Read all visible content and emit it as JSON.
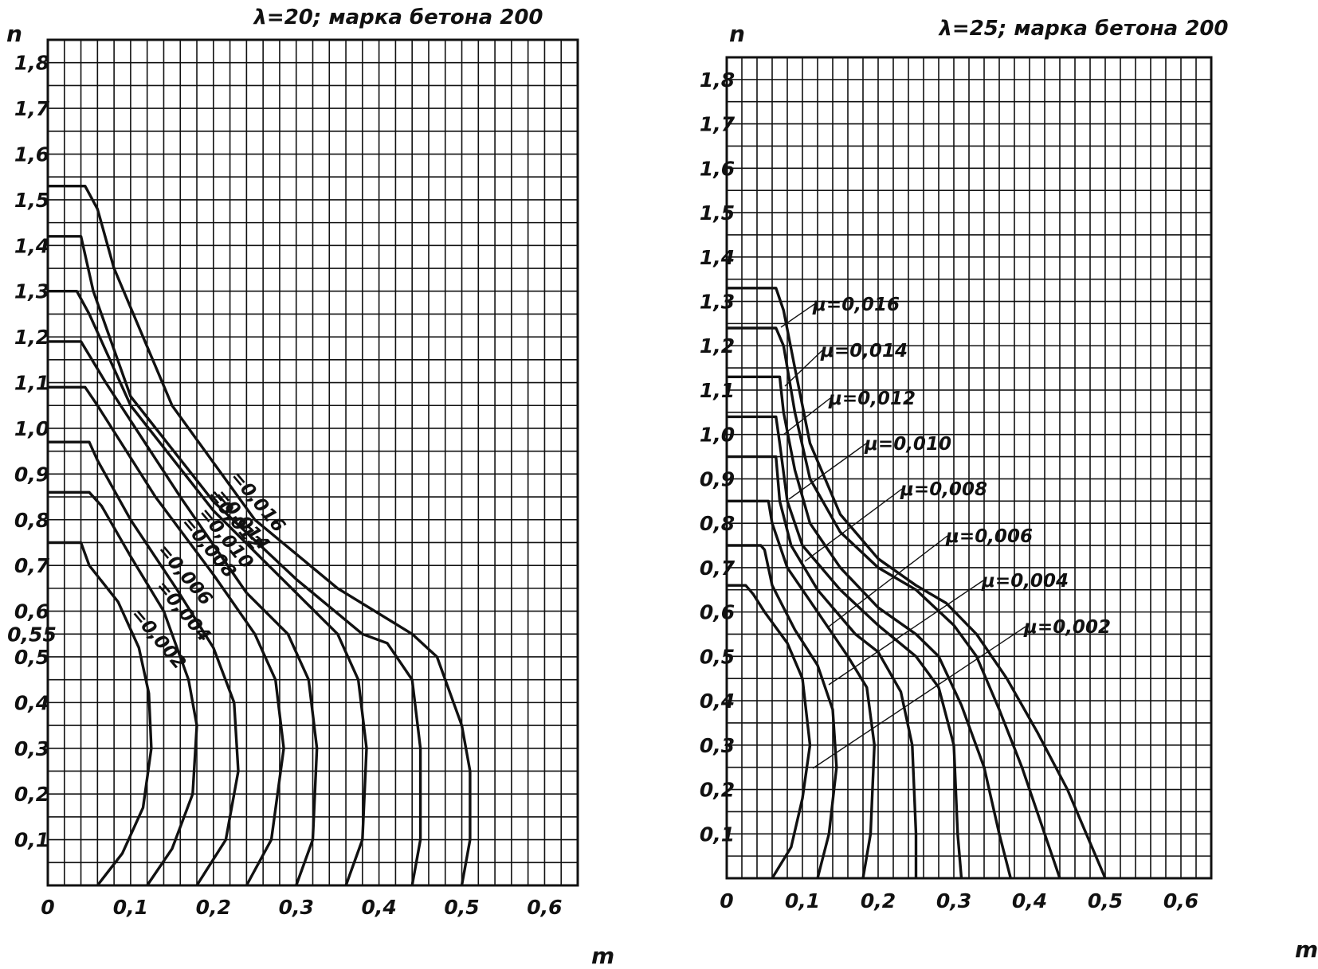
{
  "chart_data": [
    {
      "type": "line",
      "title": "λ=20; марка бетона 200",
      "xlabel": "m",
      "ylabel": "n",
      "xlim": [
        0,
        0.64
      ],
      "ylim": [
        0,
        1.85
      ],
      "xticks": [
        "0",
        "0,1",
        "0,2",
        "0,3",
        "0,4",
        "0,5",
        "0,6"
      ],
      "yticks": [
        "0,1",
        "0,2",
        "0,3",
        "0,4",
        "0,5",
        "0,55",
        "0,6",
        "0,7",
        "0,8",
        "0,9",
        "1,0",
        "1,1",
        "1,2",
        "1,3",
        "1,4",
        "1,5",
        "1,6",
        "1,7",
        "1,8"
      ],
      "grid": true,
      "series": [
        {
          "name": "μ=0,002",
          "label": "=0,002",
          "points": [
            [
              0.06,
              0.0
            ],
            [
              0.09,
              0.07
            ],
            [
              0.115,
              0.17
            ],
            [
              0.125,
              0.3
            ],
            [
              0.122,
              0.42
            ],
            [
              0.11,
              0.52
            ],
            [
              0.085,
              0.62
            ],
            [
              0.05,
              0.7
            ],
            [
              0.04,
              0.75
            ],
            [
              0.0,
              0.75
            ]
          ]
        },
        {
          "name": "μ=0,004",
          "label": "=0,004",
          "points": [
            [
              0.12,
              0.0
            ],
            [
              0.15,
              0.08
            ],
            [
              0.175,
              0.2
            ],
            [
              0.18,
              0.35
            ],
            [
              0.17,
              0.45
            ],
            [
              0.14,
              0.6
            ],
            [
              0.1,
              0.72
            ],
            [
              0.065,
              0.83
            ],
            [
              0.05,
              0.86
            ],
            [
              0.0,
              0.86
            ]
          ]
        },
        {
          "name": "μ=0,006",
          "label": "=0,006",
          "points": [
            [
              0.18,
              0.0
            ],
            [
              0.215,
              0.1
            ],
            [
              0.23,
              0.25
            ],
            [
              0.225,
              0.4
            ],
            [
              0.2,
              0.52
            ],
            [
              0.155,
              0.65
            ],
            [
              0.1,
              0.8
            ],
            [
              0.06,
              0.93
            ],
            [
              0.05,
              0.97
            ],
            [
              0.0,
              0.97
            ]
          ]
        },
        {
          "name": "μ=0,008",
          "label": "=0,008",
          "points": [
            [
              0.24,
              0.0
            ],
            [
              0.27,
              0.1
            ],
            [
              0.285,
              0.3
            ],
            [
              0.275,
              0.45
            ],
            [
              0.25,
              0.55
            ],
            [
              0.2,
              0.68
            ],
            [
              0.13,
              0.85
            ],
            [
              0.06,
              1.05
            ],
            [
              0.045,
              1.09
            ],
            [
              0.0,
              1.09
            ]
          ]
        },
        {
          "name": "μ=0,010",
          "label": "=0,010",
          "points": [
            [
              0.3,
              0.0
            ],
            [
              0.32,
              0.1
            ],
            [
              0.325,
              0.3
            ],
            [
              0.315,
              0.45
            ],
            [
              0.29,
              0.55
            ],
            [
              0.24,
              0.64
            ],
            [
              0.16,
              0.85
            ],
            [
              0.07,
              1.1
            ],
            [
              0.04,
              1.19
            ],
            [
              0.0,
              1.19
            ]
          ]
        },
        {
          "name": "μ=0,012",
          "label": "=0,012",
          "points": [
            [
              0.36,
              0.0
            ],
            [
              0.38,
              0.1
            ],
            [
              0.385,
              0.3
            ],
            [
              0.375,
              0.45
            ],
            [
              0.35,
              0.55
            ],
            [
              0.3,
              0.64
            ],
            [
              0.2,
              0.82
            ],
            [
              0.1,
              1.05
            ],
            [
              0.05,
              1.25
            ],
            [
              0.035,
              1.3
            ],
            [
              0.0,
              1.3
            ]
          ]
        },
        {
          "name": "μ=0,014",
          "label": "=0,014",
          "points": [
            [
              0.44,
              0.0
            ],
            [
              0.45,
              0.1
            ],
            [
              0.45,
              0.3
            ],
            [
              0.44,
              0.45
            ],
            [
              0.41,
              0.53
            ],
            [
              0.38,
              0.55
            ],
            [
              0.3,
              0.67
            ],
            [
              0.2,
              0.84
            ],
            [
              0.1,
              1.07
            ],
            [
              0.055,
              1.3
            ],
            [
              0.04,
              1.42
            ],
            [
              0.0,
              1.42
            ]
          ]
        },
        {
          "name": "μ=0,016",
          "label": "=0,016",
          "points": [
            [
              0.5,
              0.0
            ],
            [
              0.51,
              0.1
            ],
            [
              0.51,
              0.25
            ],
            [
              0.5,
              0.35
            ],
            [
              0.47,
              0.5
            ],
            [
              0.44,
              0.55
            ],
            [
              0.35,
              0.65
            ],
            [
              0.25,
              0.8
            ],
            [
              0.15,
              1.05
            ],
            [
              0.08,
              1.35
            ],
            [
              0.06,
              1.48
            ],
            [
              0.045,
              1.53
            ],
            [
              0.0,
              1.53
            ]
          ]
        }
      ]
    },
    {
      "type": "line",
      "title": "λ=25; марка бетона 200",
      "xlabel": "m",
      "ylabel": "n",
      "xlim": [
        0,
        0.64
      ],
      "ylim": [
        0,
        1.85
      ],
      "xticks": [
        "0",
        "0,1",
        "0,2",
        "0,3",
        "0,4",
        "0,5",
        "0,6"
      ],
      "yticks": [
        "0,1",
        "0,2",
        "0,3",
        "0,4",
        "0,5",
        "0,6",
        "0,7",
        "0,8",
        "0,9",
        "1,0",
        "1,1",
        "1,2",
        "1,3",
        "1,4",
        "1,5",
        "1,6",
        "1,7",
        "1,8"
      ],
      "grid": true,
      "series": [
        {
          "name": "μ=0,002",
          "label": "μ=0,002",
          "points": [
            [
              0.06,
              0.0
            ],
            [
              0.085,
              0.07
            ],
            [
              0.1,
              0.18
            ],
            [
              0.11,
              0.3
            ],
            [
              0.1,
              0.45
            ],
            [
              0.08,
              0.53
            ],
            [
              0.05,
              0.6
            ],
            [
              0.035,
              0.64
            ],
            [
              0.025,
              0.66
            ],
            [
              0.0,
              0.66
            ]
          ]
        },
        {
          "name": "μ=0,004",
          "label": "μ=0,004",
          "points": [
            [
              0.12,
              0.0
            ],
            [
              0.135,
              0.1
            ],
            [
              0.145,
              0.25
            ],
            [
              0.14,
              0.38
            ],
            [
              0.12,
              0.48
            ],
            [
              0.09,
              0.56
            ],
            [
              0.06,
              0.66
            ],
            [
              0.05,
              0.74
            ],
            [
              0.045,
              0.75
            ],
            [
              0.0,
              0.75
            ]
          ]
        },
        {
          "name": "μ=0,006",
          "label": "μ=0,006",
          "points": [
            [
              0.18,
              0.0
            ],
            [
              0.19,
              0.1
            ],
            [
              0.195,
              0.3
            ],
            [
              0.185,
              0.43
            ],
            [
              0.16,
              0.5
            ],
            [
              0.12,
              0.6
            ],
            [
              0.08,
              0.7
            ],
            [
              0.06,
              0.8
            ],
            [
              0.055,
              0.85
            ],
            [
              0.0,
              0.85
            ]
          ]
        },
        {
          "name": "μ=0,008",
          "label": "μ=0,008",
          "points": [
            [
              0.25,
              0.0
            ],
            [
              0.25,
              0.1
            ],
            [
              0.245,
              0.3
            ],
            [
              0.23,
              0.42
            ],
            [
              0.2,
              0.51
            ],
            [
              0.17,
              0.55
            ],
            [
              0.12,
              0.65
            ],
            [
              0.085,
              0.75
            ],
            [
              0.07,
              0.85
            ],
            [
              0.065,
              0.95
            ],
            [
              0.0,
              0.95
            ]
          ]
        },
        {
          "name": "μ=0,010",
          "label": "μ=0,010",
          "points": [
            [
              0.31,
              0.0
            ],
            [
              0.305,
              0.1
            ],
            [
              0.3,
              0.3
            ],
            [
              0.28,
              0.43
            ],
            [
              0.25,
              0.5
            ],
            [
              0.2,
              0.57
            ],
            [
              0.15,
              0.65
            ],
            [
              0.1,
              0.75
            ],
            [
              0.08,
              0.85
            ],
            [
              0.07,
              0.98
            ],
            [
              0.065,
              1.04
            ],
            [
              0.0,
              1.04
            ]
          ]
        },
        {
          "name": "μ=0,012",
          "label": "μ=0,012",
          "points": [
            [
              0.375,
              0.0
            ],
            [
              0.36,
              0.1
            ],
            [
              0.34,
              0.25
            ],
            [
              0.31,
              0.39
            ],
            [
              0.28,
              0.5
            ],
            [
              0.25,
              0.55
            ],
            [
              0.2,
              0.61
            ],
            [
              0.15,
              0.7
            ],
            [
              0.11,
              0.8
            ],
            [
              0.09,
              0.92
            ],
            [
              0.075,
              1.05
            ],
            [
              0.07,
              1.13
            ],
            [
              0.0,
              1.13
            ]
          ]
        },
        {
          "name": "μ=0,014",
          "label": "μ=0,014",
          "points": [
            [
              0.44,
              0.0
            ],
            [
              0.42,
              0.1
            ],
            [
              0.39,
              0.25
            ],
            [
              0.36,
              0.38
            ],
            [
              0.33,
              0.5
            ],
            [
              0.3,
              0.57
            ],
            [
              0.25,
              0.65
            ],
            [
              0.2,
              0.7
            ],
            [
              0.15,
              0.78
            ],
            [
              0.11,
              0.9
            ],
            [
              0.09,
              1.05
            ],
            [
              0.075,
              1.2
            ],
            [
              0.065,
              1.24
            ],
            [
              0.0,
              1.24
            ]
          ]
        },
        {
          "name": "μ=0,016",
          "label": "μ=0,016",
          "points": [
            [
              0.5,
              0.0
            ],
            [
              0.48,
              0.08
            ],
            [
              0.45,
              0.2
            ],
            [
              0.41,
              0.33
            ],
            [
              0.37,
              0.45
            ],
            [
              0.33,
              0.55
            ],
            [
              0.29,
              0.62
            ],
            [
              0.25,
              0.66
            ],
            [
              0.2,
              0.72
            ],
            [
              0.15,
              0.82
            ],
            [
              0.11,
              0.98
            ],
            [
              0.09,
              1.15
            ],
            [
              0.075,
              1.28
            ],
            [
              0.065,
              1.33
            ],
            [
              0.0,
              1.33
            ]
          ]
        }
      ]
    }
  ]
}
